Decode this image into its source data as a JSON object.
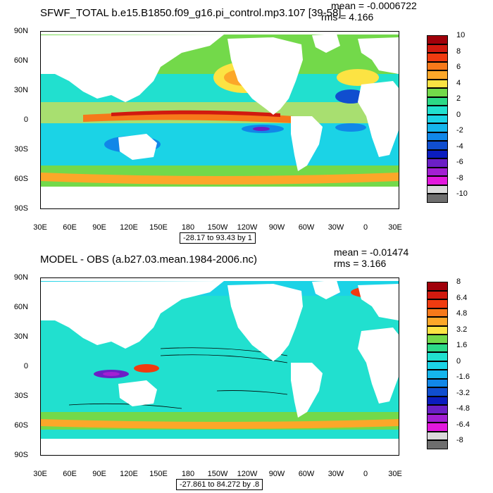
{
  "top_panel": {
    "title": "SFWF_TOTAL b.e15.B1850.f09_g16.pi_control.mp3.107 [39-58]",
    "mean": "mean = -0.0006722",
    "rms": "rms = 4.166",
    "range_label": "-28.17 to 93.43 by 1",
    "colorbar_labels": [
      "10",
      "8",
      "6",
      "4",
      "2",
      "0",
      "-2",
      "-4",
      "-6",
      "-8",
      "-10"
    ],
    "colorbar_colors": [
      "#a0000a",
      "#d11a0f",
      "#f03b10",
      "#f7791a",
      "#fca729",
      "#fce343",
      "#73d94a",
      "#2cd987",
      "#21e0cf",
      "#1bd3e6",
      "#15b5ec",
      "#1187e8",
      "#104ecf",
      "#0b1dbf",
      "#6b1fc6",
      "#a31fd3",
      "#e218dd",
      "#d9d9d9",
      "#6e6e6e"
    ]
  },
  "bottom_panel": {
    "title": "MODEL - OBS (a.b27.03.mean.1984-2006.nc)",
    "mean": "mean = -0.01474",
    "rms": "rms = 3.166",
    "range_label": "-27.861 to 84.272 by .8",
    "colorbar_labels": [
      "8",
      "6.4",
      "4.8",
      "3.2",
      "1.6",
      "0",
      "-1.6",
      "-3.2",
      "-4.8",
      "-6.4",
      "-8"
    ],
    "colorbar_colors": [
      "#a0000a",
      "#d11a0f",
      "#f03b10",
      "#f7791a",
      "#fca729",
      "#fce343",
      "#73d94a",
      "#2cd987",
      "#21e0cf",
      "#1bd3e6",
      "#15b5ec",
      "#1187e8",
      "#104ecf",
      "#0b1dbf",
      "#6b1fc6",
      "#a31fd3",
      "#e218dd",
      "#d9d9d9",
      "#6e6e6e"
    ]
  },
  "axes": {
    "lat_labels": [
      "90N",
      "60N",
      "30N",
      "0",
      "30S",
      "60S",
      "90S"
    ],
    "lon_labels": [
      "30E",
      "60E",
      "90E",
      "120E",
      "150E",
      "180",
      "150W",
      "120W",
      "90W",
      "60W",
      "30W",
      "0",
      "30E"
    ]
  },
  "colors": {
    "land": "#ffffff",
    "ocean_base": "#2cd9b4"
  }
}
